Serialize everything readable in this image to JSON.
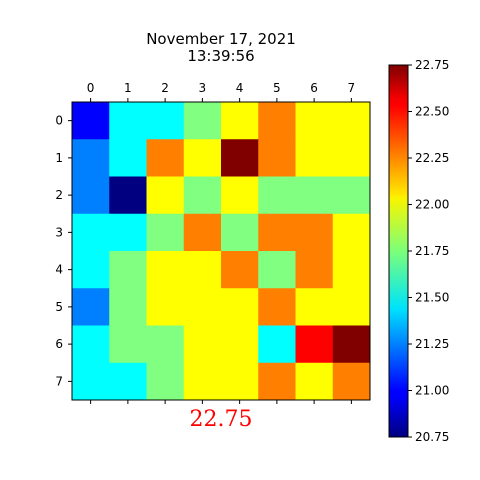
{
  "chart_data": {
    "type": "heatmap",
    "title_line1": "November 17, 2021",
    "title_line2": "13:39:56",
    "x_ticks": [
      "0",
      "1",
      "2",
      "3",
      "4",
      "5",
      "6",
      "7"
    ],
    "y_ticks": [
      "0",
      "1",
      "2",
      "3",
      "4",
      "5",
      "6",
      "7"
    ],
    "x_axis_position": "top",
    "colormap": "jet",
    "vmin": 20.75,
    "vmax": 22.75,
    "colorbar_ticks": [
      "20.75",
      "21.00",
      "21.25",
      "21.50",
      "21.75",
      "22.00",
      "22.25",
      "22.50",
      "22.75"
    ],
    "colorbar_tick_values": [
      20.75,
      21.0,
      21.25,
      21.5,
      21.75,
      22.0,
      22.25,
      22.5,
      22.75
    ],
    "values": [
      [
        21.0,
        21.5,
        21.5,
        21.75,
        22.0,
        22.25,
        22.0,
        22.0
      ],
      [
        21.25,
        21.5,
        22.25,
        22.0,
        22.75,
        22.25,
        22.0,
        22.0
      ],
      [
        21.25,
        20.75,
        22.0,
        21.75,
        22.0,
        21.75,
        21.75,
        21.75
      ],
      [
        21.5,
        21.5,
        21.75,
        22.25,
        21.75,
        22.25,
        22.25,
        22.0
      ],
      [
        21.5,
        21.75,
        22.0,
        22.0,
        22.25,
        21.75,
        22.25,
        22.0
      ],
      [
        21.25,
        21.75,
        22.0,
        22.0,
        22.0,
        22.25,
        22.0,
        22.0
      ],
      [
        21.5,
        21.75,
        21.75,
        22.0,
        22.0,
        21.5,
        22.5,
        22.75
      ],
      [
        21.5,
        21.5,
        21.75,
        22.0,
        22.0,
        22.25,
        22.0,
        22.25
      ]
    ],
    "readout_value": "22.75",
    "readout_color": "#ff0000"
  }
}
